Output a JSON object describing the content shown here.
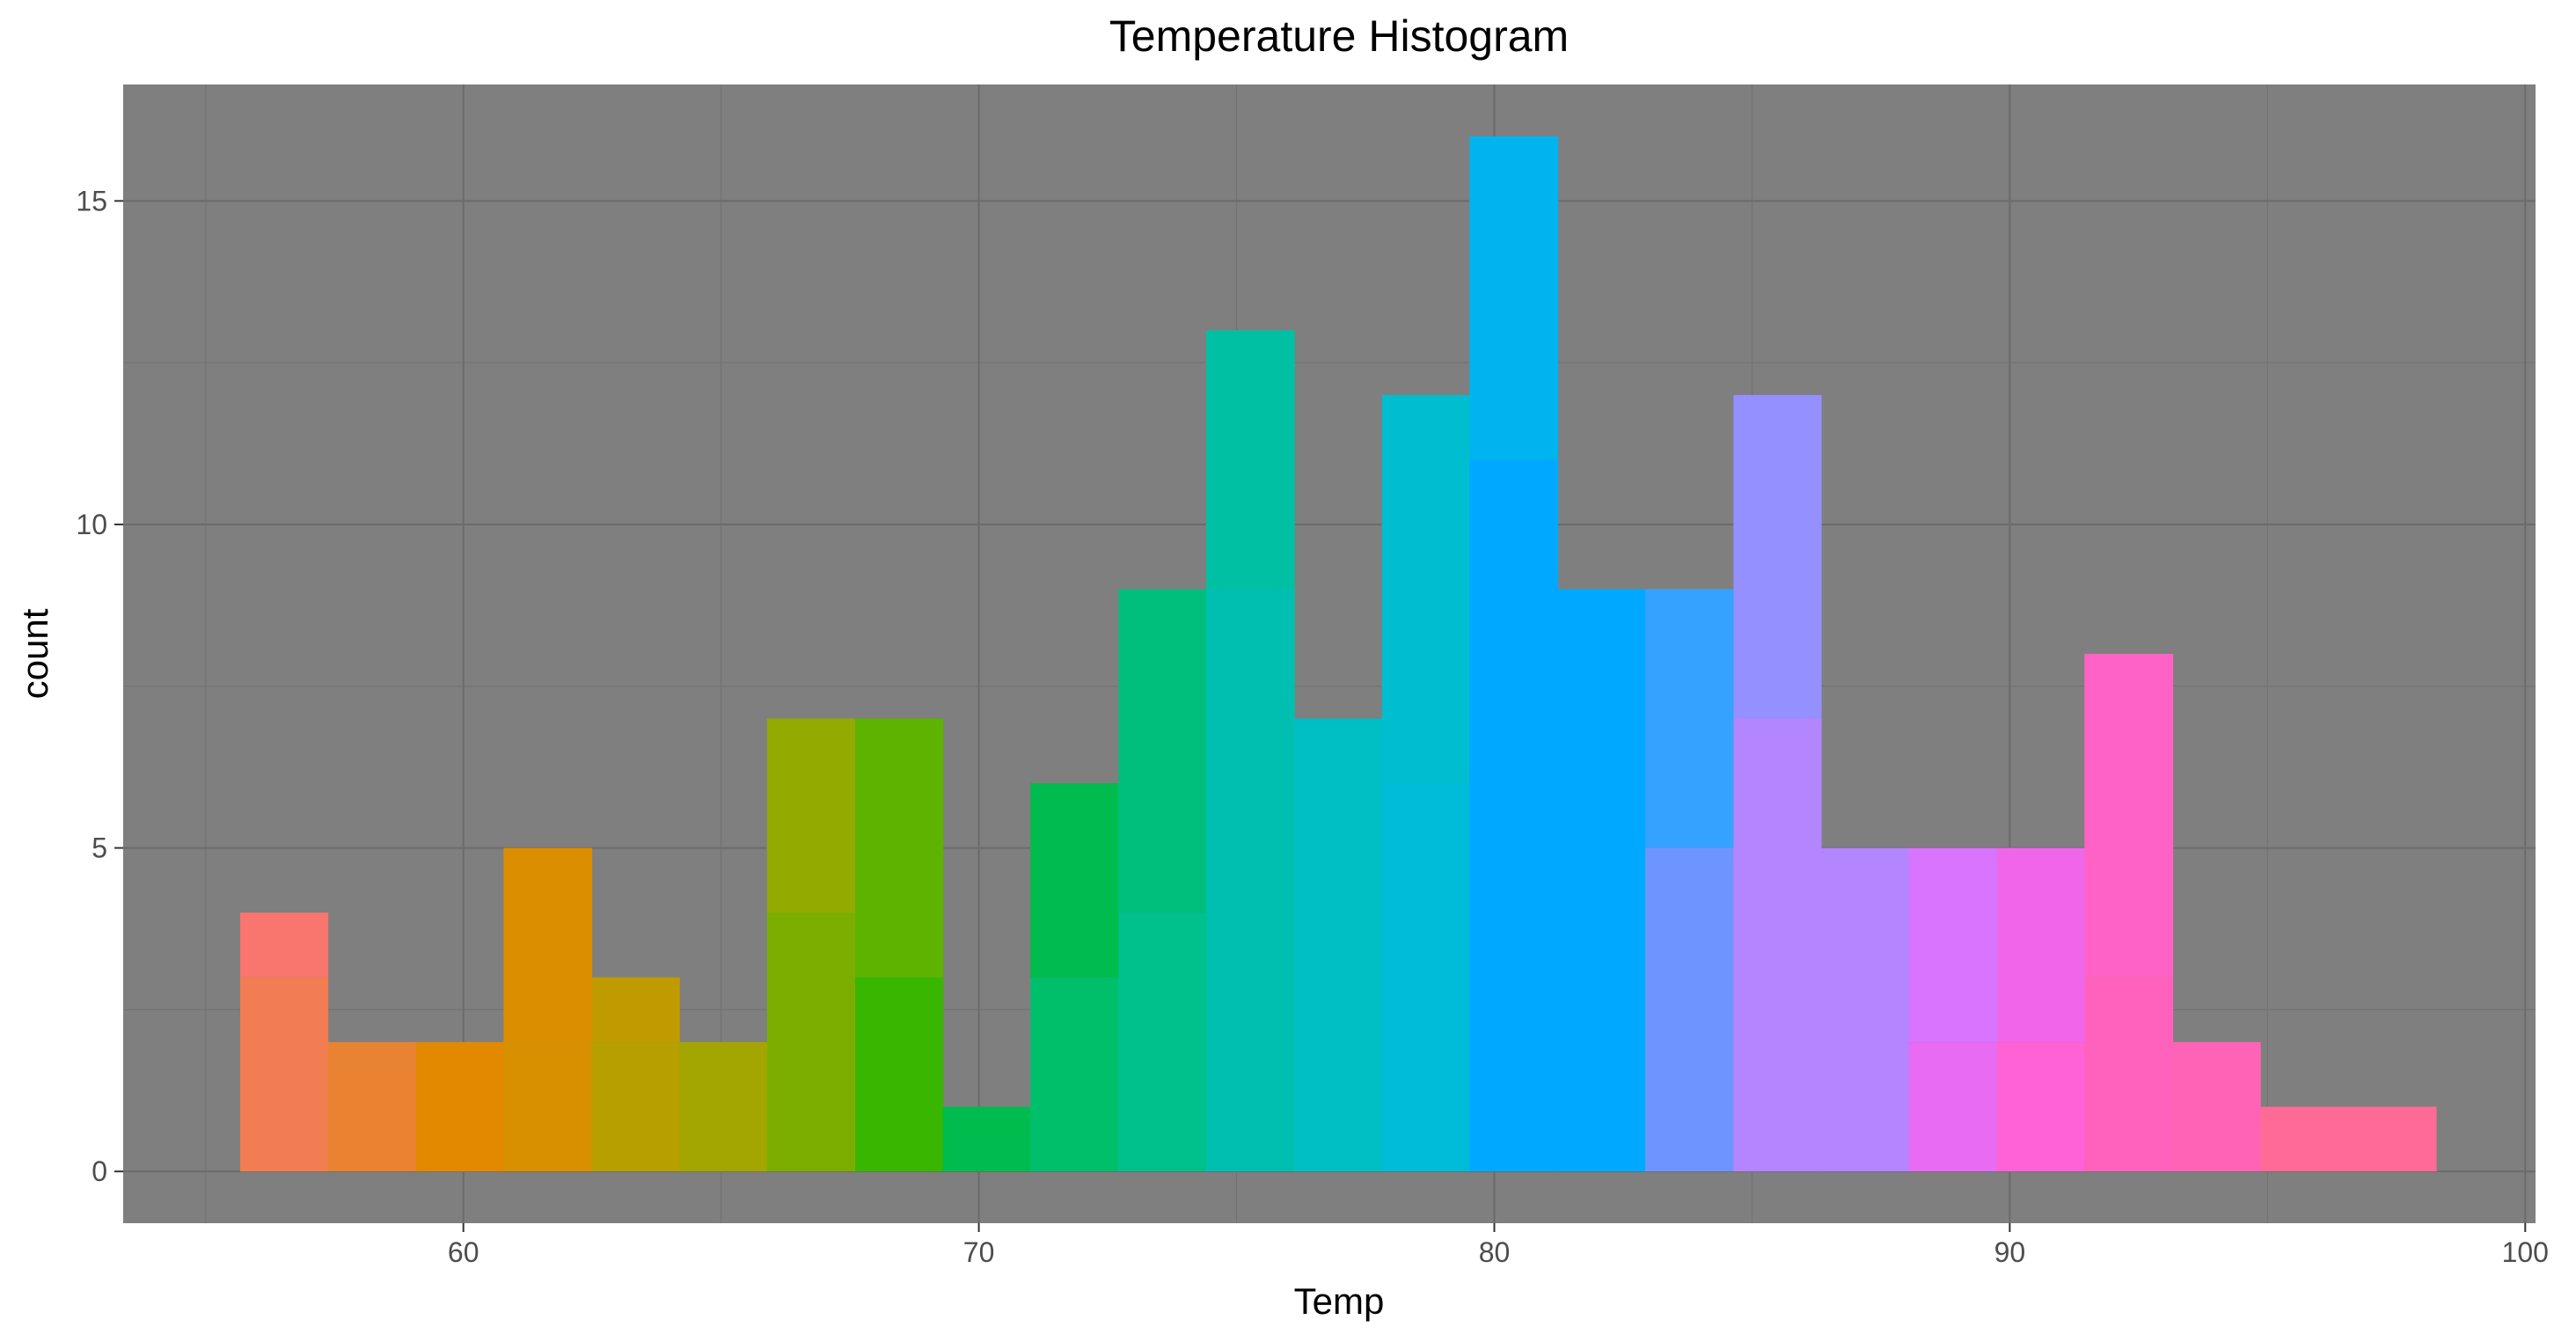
{
  "chart_data": {
    "type": "bar",
    "title": "Temperature Histogram",
    "xlabel": "Temp",
    "ylabel": "count",
    "xlim": [
      53.4,
      100.2
    ],
    "ylim": [
      -0.8,
      16.8
    ],
    "x_ticks": [
      60,
      70,
      80,
      90,
      100
    ],
    "y_ticks": [
      0,
      5,
      10,
      15
    ],
    "grid": true,
    "background": "#7f7f7f",
    "bin_width": 1.7037,
    "bins": [
      {
        "x_start": 55.67,
        "x_end": 57.37,
        "segments": [
          {
            "count": 3,
            "color": "#F27D52"
          },
          {
            "count": 1,
            "color": "#F8766D"
          }
        ]
      },
      {
        "x_start": 57.37,
        "x_end": 59.08,
        "segments": [
          {
            "count": 2,
            "color": "#EA8331"
          }
        ]
      },
      {
        "x_start": 59.08,
        "x_end": 60.78,
        "segments": [
          {
            "count": 2,
            "color": "#E38900"
          }
        ]
      },
      {
        "x_start": 60.78,
        "x_end": 62.49,
        "segments": [
          {
            "count": 2,
            "color": "#D89000"
          },
          {
            "count": 3,
            "color": "#DB8E00"
          }
        ]
      },
      {
        "x_start": 62.49,
        "x_end": 64.19,
        "segments": [
          {
            "count": 2,
            "color": "#B79F00"
          },
          {
            "count": 1,
            "color": "#C09B00"
          }
        ]
      },
      {
        "x_start": 64.19,
        "x_end": 65.89,
        "segments": [
          {
            "count": 2,
            "color": "#A3A500"
          }
        ]
      },
      {
        "x_start": 65.89,
        "x_end": 67.6,
        "segments": [
          {
            "count": 4,
            "color": "#7CAE00"
          },
          {
            "count": 3,
            "color": "#93AA00"
          }
        ]
      },
      {
        "x_start": 67.6,
        "x_end": 69.3,
        "segments": [
          {
            "count": 3,
            "color": "#39B600"
          },
          {
            "count": 4,
            "color": "#5EB300"
          }
        ]
      },
      {
        "x_start": 69.3,
        "x_end": 71.0,
        "segments": [
          {
            "count": 1,
            "color": "#00BB4E"
          }
        ]
      },
      {
        "x_start": 71.0,
        "x_end": 72.71,
        "segments": [
          {
            "count": 3,
            "color": "#00BF6A"
          },
          {
            "count": 3,
            "color": "#00BB4E"
          }
        ]
      },
      {
        "x_start": 72.71,
        "x_end": 74.41,
        "segments": [
          {
            "count": 4,
            "color": "#00C08B"
          },
          {
            "count": 5,
            "color": "#00BF7D"
          }
        ]
      },
      {
        "x_start": 74.41,
        "x_end": 76.12,
        "segments": [
          {
            "count": 9,
            "color": "#00BFB0"
          },
          {
            "count": 4,
            "color": "#00C0A4"
          }
        ]
      },
      {
        "x_start": 76.12,
        "x_end": 77.82,
        "segments": [
          {
            "count": 7,
            "color": "#00BFC4"
          }
        ]
      },
      {
        "x_start": 77.82,
        "x_end": 79.52,
        "segments": [
          {
            "count": 6,
            "color": "#00BCD8"
          },
          {
            "count": 6,
            "color": "#00BED0"
          }
        ]
      },
      {
        "x_start": 79.52,
        "x_end": 81.23,
        "segments": [
          {
            "count": 11,
            "color": "#00A9FF"
          },
          {
            "count": 5,
            "color": "#00B4EF"
          }
        ]
      },
      {
        "x_start": 81.23,
        "x_end": 82.93,
        "segments": [
          {
            "count": 9,
            "color": "#00A9FF"
          }
        ]
      },
      {
        "x_start": 82.93,
        "x_end": 84.64,
        "segments": [
          {
            "count": 5,
            "color": "#6E95FF"
          },
          {
            "count": 4,
            "color": "#35A2FF"
          }
        ]
      },
      {
        "x_start": 84.64,
        "x_end": 86.34,
        "segments": [
          {
            "count": 7,
            "color": "#B385FF"
          },
          {
            "count": 5,
            "color": "#9590FF"
          }
        ]
      },
      {
        "x_start": 86.34,
        "x_end": 88.04,
        "segments": [
          {
            "count": 5,
            "color": "#B385FF"
          }
        ]
      },
      {
        "x_start": 88.04,
        "x_end": 89.75,
        "segments": [
          {
            "count": 2,
            "color": "#E76BF3"
          },
          {
            "count": 3,
            "color": "#D874FD"
          }
        ]
      },
      {
        "x_start": 89.75,
        "x_end": 91.45,
        "segments": [
          {
            "count": 2,
            "color": "#FF62D5"
          },
          {
            "count": 3,
            "color": "#F066EA"
          }
        ]
      },
      {
        "x_start": 91.45,
        "x_end": 93.16,
        "segments": [
          {
            "count": 3,
            "color": "#FF62BC"
          },
          {
            "count": 5,
            "color": "#FF62C6"
          }
        ]
      },
      {
        "x_start": 93.16,
        "x_end": 94.86,
        "segments": [
          {
            "count": 2,
            "color": "#FF63B6"
          }
        ]
      },
      {
        "x_start": 94.86,
        "x_end": 96.56,
        "segments": [
          {
            "count": 1,
            "color": "#FF6A98"
          }
        ]
      },
      {
        "x_start": 96.56,
        "x_end": 98.27,
        "segments": [
          {
            "count": 1,
            "color": "#FF6A98"
          }
        ]
      }
    ]
  }
}
